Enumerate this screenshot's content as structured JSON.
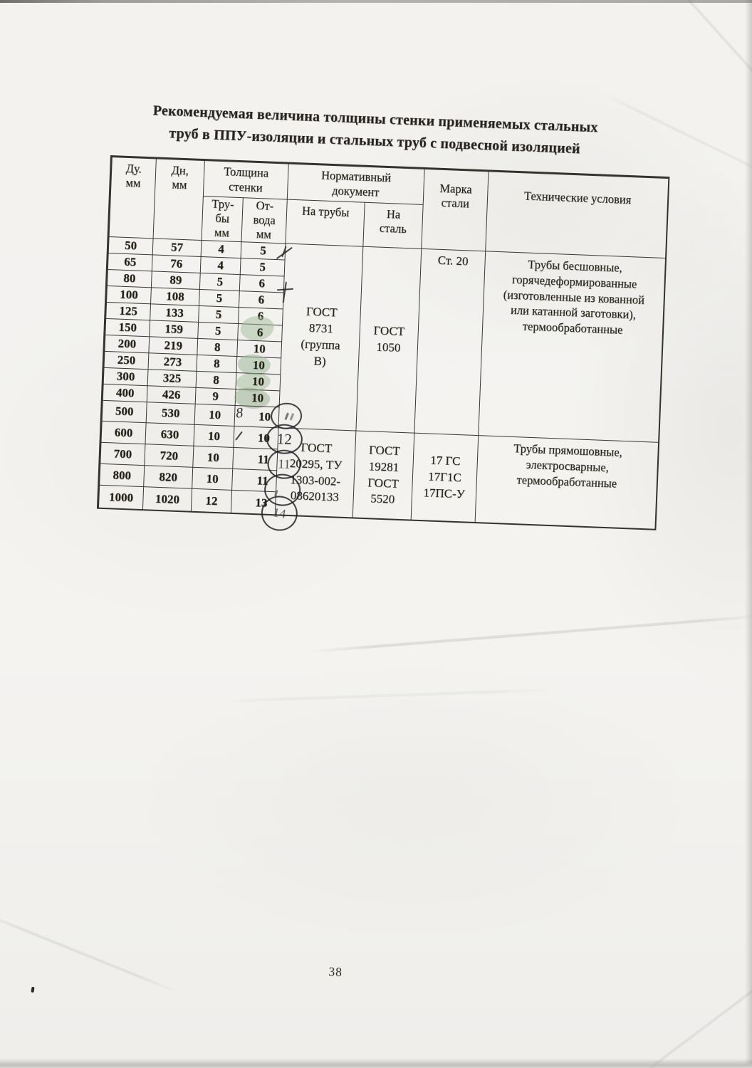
{
  "document": {
    "title_line1": "Рекомендуемая величина толщины стенки применяемых стальных",
    "title_line2": "труб в ППУ-изоляции и стальных труб с подвесной изоляцией",
    "page_number": "38"
  },
  "table": {
    "header": {
      "du": "Ду.\nмм",
      "dn": "Дн,\nмм",
      "thickness": "Толщина\nстенки",
      "truby": "Тру-\nбы\nмм",
      "otvoda": "От-\nвода\nмм",
      "normdoc": "Нормативный\nдокумент",
      "na_truby": "На трубы",
      "na_stal": "На\nсталь",
      "marka": "Марка\nстали",
      "tu": "Технические условия"
    },
    "rows": [
      {
        "du": "50",
        "dn": "57",
        "truby": "4",
        "otvoda": "5"
      },
      {
        "du": "65",
        "dn": "76",
        "truby": "4",
        "otvoda": "5"
      },
      {
        "du": "80",
        "dn": "89",
        "truby": "5",
        "otvoda": "6"
      },
      {
        "du": "100",
        "dn": "108",
        "truby": "5",
        "otvoda": "6"
      },
      {
        "du": "125",
        "dn": "133",
        "truby": "5",
        "otvoda": "6"
      },
      {
        "du": "150",
        "dn": "159",
        "truby": "5",
        "otvoda": "6"
      },
      {
        "du": "200",
        "dn": "219",
        "truby": "8",
        "otvoda": "10"
      },
      {
        "du": "250",
        "dn": "273",
        "truby": "8",
        "otvoda": "10"
      },
      {
        "du": "300",
        "dn": "325",
        "truby": "8",
        "otvoda": "10"
      },
      {
        "du": "400",
        "dn": "426",
        "truby": "9",
        "otvoda": "10"
      },
      {
        "du": "500",
        "dn": "530",
        "truby": "10",
        "otvoda": "10"
      },
      {
        "du": "600",
        "dn": "630",
        "truby": "10",
        "otvoda": "10"
      },
      {
        "du": "700",
        "dn": "720",
        "truby": "10",
        "otvoda": "11"
      },
      {
        "du": "800",
        "dn": "820",
        "truby": "10",
        "otvoda": "11"
      },
      {
        "du": "1000",
        "dn": "1020",
        "truby": "12",
        "otvoda": "13"
      }
    ],
    "section1": {
      "na_truby": "ГОСТ\n8731\n(группа\nВ)",
      "na_stal": "ГОСТ\n1050",
      "marka": "Ст. 20",
      "tu": "Трубы бесшовные,\nгорячедеформированные\n(изготовленные из кованной\nили катанной заготовки),\nтермообработанные"
    },
    "section2": {
      "na_truby": "ГОСТ\n20295, ТУ\n1303-002-\n08620133",
      "na_stal": "ГОСТ\n19281\nГОСТ\n5520",
      "marka": "17 ГС\n17Г1С\n17ПС-У",
      "tu": "Трубы прямошовные,\nэлектросварные,\nтермообработанные"
    }
  },
  "annotations": {
    "handwritten_row500": "8",
    "circled_600": "12",
    "circled_700": "11",
    "circled_1000": "14",
    "highlight_color": "#9eb896",
    "pen_color": "#232328"
  }
}
